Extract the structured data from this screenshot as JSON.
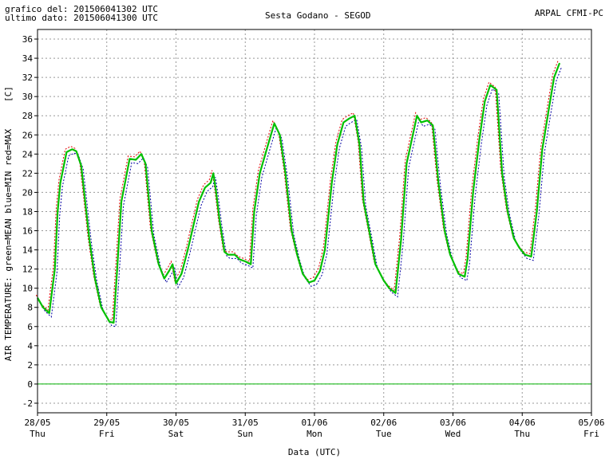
{
  "header": {
    "graph_time": "grafico del: 201506041302 UTC",
    "last_data": "ultimo dato: 201506041300 UTC",
    "station": "Sesta Godano - SEGOD",
    "source": "ARPAL CFMI-PC"
  },
  "chart_data": {
    "type": "line",
    "title": "Sesta Godano - SEGOD",
    "ylabel": "AIR TEMPERATURE: green=MEAN  blue=MIN  red=MAX",
    "yunit": "[C]",
    "xlabel": "Data (UTC)",
    "ylim": [
      -3,
      37
    ],
    "yticks": [
      -2,
      0,
      2,
      4,
      6,
      8,
      10,
      12,
      14,
      16,
      18,
      20,
      22,
      24,
      26,
      28,
      30,
      32,
      34,
      36
    ],
    "xlim_days": [
      0,
      8
    ],
    "x_ticks": [
      {
        "date": "28/05",
        "day": "Thu"
      },
      {
        "date": "29/05",
        "day": "Fri"
      },
      {
        "date": "30/05",
        "day": "Sat"
      },
      {
        "date": "31/05",
        "day": "Sun"
      },
      {
        "date": "01/06",
        "day": "Mon"
      },
      {
        "date": "02/06",
        "day": "Tue"
      },
      {
        "date": "03/06",
        "day": "Wed"
      },
      {
        "date": "04/06",
        "day": "Thu"
      },
      {
        "date": "05/06",
        "day": "Fri"
      }
    ],
    "grid": true,
    "reference_line": 0,
    "colors": {
      "mean": "#00c000",
      "min": "#0000a0",
      "max": "#e00000",
      "zero": "#00b000"
    },
    "series": [
      {
        "name": "MEAN",
        "points": [
          [
            0.0,
            9.0
          ],
          [
            0.08,
            8.0
          ],
          [
            0.17,
            7.4
          ],
          [
            0.25,
            12.0
          ],
          [
            0.29,
            18.0
          ],
          [
            0.33,
            21.0
          ],
          [
            0.42,
            24.2
          ],
          [
            0.5,
            24.5
          ],
          [
            0.56,
            24.3
          ],
          [
            0.63,
            22.8
          ],
          [
            0.75,
            15.0
          ],
          [
            0.83,
            11.0
          ],
          [
            0.92,
            8.0
          ],
          [
            1.04,
            6.5
          ],
          [
            1.1,
            6.4
          ],
          [
            1.15,
            12.0
          ],
          [
            1.21,
            19.0
          ],
          [
            1.33,
            23.5
          ],
          [
            1.42,
            23.4
          ],
          [
            1.5,
            24.0
          ],
          [
            1.56,
            23.0
          ],
          [
            1.65,
            16.0
          ],
          [
            1.75,
            12.5
          ],
          [
            1.83,
            11.0
          ],
          [
            1.9,
            11.8
          ],
          [
            1.95,
            12.5
          ],
          [
            2.0,
            10.5
          ],
          [
            2.08,
            11.5
          ],
          [
            2.17,
            14.0
          ],
          [
            2.25,
            16.5
          ],
          [
            2.33,
            19.0
          ],
          [
            2.42,
            20.5
          ],
          [
            2.5,
            21.0
          ],
          [
            2.54,
            22.0
          ],
          [
            2.58,
            20.0
          ],
          [
            2.63,
            17.0
          ],
          [
            2.7,
            13.8
          ],
          [
            2.75,
            13.5
          ],
          [
            2.85,
            13.5
          ],
          [
            2.92,
            13.0
          ],
          [
            3.0,
            12.8
          ],
          [
            3.08,
            12.5
          ],
          [
            3.13,
            18.0
          ],
          [
            3.21,
            22.0
          ],
          [
            3.33,
            25.0
          ],
          [
            3.42,
            27.2
          ],
          [
            3.5,
            26.0
          ],
          [
            3.58,
            22.0
          ],
          [
            3.67,
            16.0
          ],
          [
            3.75,
            13.5
          ],
          [
            3.83,
            11.5
          ],
          [
            3.92,
            10.6
          ],
          [
            4.0,
            10.8
          ],
          [
            4.08,
            11.8
          ],
          [
            4.15,
            14.0
          ],
          [
            4.25,
            21.0
          ],
          [
            4.33,
            25.0
          ],
          [
            4.42,
            27.3
          ],
          [
            4.5,
            27.7
          ],
          [
            4.58,
            28.0
          ],
          [
            4.65,
            25.0
          ],
          [
            4.71,
            19.0
          ],
          [
            4.79,
            16.0
          ],
          [
            4.88,
            12.5
          ],
          [
            5.0,
            10.8
          ],
          [
            5.08,
            10.0
          ],
          [
            5.17,
            9.5
          ],
          [
            5.25,
            15.0
          ],
          [
            5.33,
            23.0
          ],
          [
            5.42,
            26.0
          ],
          [
            5.48,
            28.0
          ],
          [
            5.54,
            27.3
          ],
          [
            5.63,
            27.5
          ],
          [
            5.71,
            27.0
          ],
          [
            5.79,
            21.0
          ],
          [
            5.88,
            16.0
          ],
          [
            5.96,
            13.5
          ],
          [
            6.08,
            11.5
          ],
          [
            6.17,
            11.2
          ],
          [
            6.21,
            13.0
          ],
          [
            6.29,
            20.0
          ],
          [
            6.38,
            25.5
          ],
          [
            6.46,
            29.5
          ],
          [
            6.54,
            31.2
          ],
          [
            6.63,
            30.7
          ],
          [
            6.71,
            22.0
          ],
          [
            6.79,
            18.0
          ],
          [
            6.88,
            15.2
          ],
          [
            6.96,
            14.2
          ],
          [
            7.04,
            13.5
          ],
          [
            7.13,
            13.3
          ],
          [
            7.21,
            18.0
          ],
          [
            7.29,
            24.5
          ],
          [
            7.38,
            28.5
          ],
          [
            7.46,
            32.0
          ],
          [
            7.54,
            33.5
          ]
        ]
      },
      {
        "name": "MIN",
        "offset": [
          0.03,
          -0.4
        ]
      },
      {
        "name": "MAX",
        "offset": [
          -0.02,
          0.3
        ]
      }
    ]
  }
}
